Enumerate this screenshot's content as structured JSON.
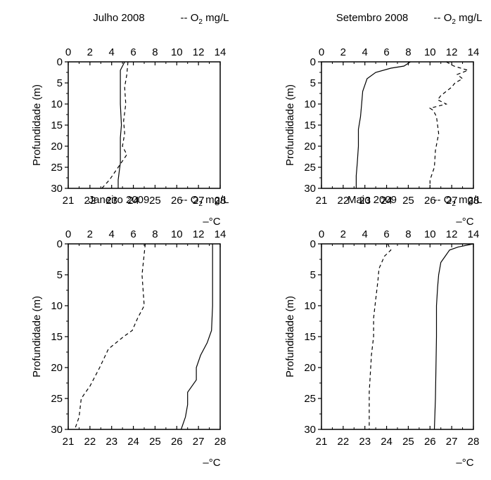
{
  "chart_data": [
    {
      "type": "line",
      "title": "Julho 2008",
      "o2_legend": {
        "dash": "--",
        "prefix": "O",
        "sub": "2",
        "suffix": " mg/L"
      },
      "temp_legend": {
        "dash": "–",
        "unit": "°C"
      },
      "ylabel": "Profundidade (m)",
      "ylim": [
        30,
        0
      ],
      "yticks": [
        "0",
        "5",
        "10",
        "15",
        "20",
        "25",
        "30"
      ],
      "top_axis": {
        "lim": [
          0,
          14
        ],
        "ticks": [
          "0",
          "2",
          "4",
          "6",
          "8",
          "10",
          "12",
          "14"
        ]
      },
      "bottom_axis": {
        "lim": [
          21,
          28
        ],
        "ticks": [
          "21",
          "22",
          "23",
          "24",
          "25",
          "26",
          "27",
          "28"
        ]
      },
      "series": [
        {
          "style": "solid",
          "axis": "bottom",
          "x": [
            23.6,
            23.4,
            23.4,
            23.4,
            23.45,
            23.4,
            23.4,
            23.4,
            23.35,
            23.3,
            23.3
          ],
          "depth": [
            0,
            2,
            5,
            10,
            15,
            18,
            20,
            24,
            26,
            28,
            30
          ]
        },
        {
          "style": "dashed",
          "axis": "top",
          "x": [
            5.5,
            5.4,
            5.2,
            5.3,
            5.1,
            5.2,
            5.0,
            5.4,
            4.6,
            3.8,
            3.1
          ],
          "depth": [
            0,
            3,
            6,
            10,
            14,
            17,
            20,
            22,
            25,
            28,
            30
          ]
        }
      ]
    },
    {
      "type": "line",
      "title": "Setembro 2008",
      "o2_legend": {
        "dash": "--",
        "prefix": "O",
        "sub": "2",
        "suffix": " mg/L"
      },
      "temp_legend": {
        "dash": "–",
        "unit": "°C"
      },
      "ylabel": "Profundidade (m)",
      "ylim": [
        30,
        0
      ],
      "yticks": [
        "0",
        "5",
        "10",
        "15",
        "20",
        "25",
        "30"
      ],
      "top_axis": {
        "lim": [
          0,
          14
        ],
        "ticks": [
          "0",
          "2",
          "4",
          "6",
          "8",
          "10",
          "12",
          "14"
        ]
      },
      "bottom_axis": {
        "lim": [
          21,
          28
        ],
        "ticks": [
          "21",
          "22",
          "23",
          "24",
          "25",
          "26",
          "27",
          "28"
        ]
      },
      "series": [
        {
          "style": "solid",
          "axis": "bottom",
          "x": [
            25.1,
            24.8,
            24.2,
            23.5,
            23.1,
            22.9,
            22.85,
            22.8,
            22.7,
            22.7,
            22.65,
            22.6,
            22.6
          ],
          "depth": [
            0,
            1,
            1.5,
            2.5,
            4,
            7,
            10,
            13,
            16,
            20,
            24,
            27,
            30
          ]
        },
        {
          "style": "dashed",
          "axis": "top",
          "x": [
            11.5,
            12.2,
            13.5,
            12.5,
            13.0,
            12.3,
            12.0,
            11.0,
            10.7,
            11.5,
            10.0,
            10.3,
            10.6,
            10.8,
            10.5,
            10.4,
            10.0,
            10.0
          ],
          "depth": [
            0,
            1,
            2,
            3,
            4,
            5,
            6,
            8,
            9,
            10,
            11,
            11.5,
            13,
            17,
            21,
            25,
            28,
            30
          ]
        }
      ]
    },
    {
      "type": "line",
      "title": "Janeiro 2009",
      "o2_legend": {
        "dash": "--",
        "prefix": "O",
        "sub": "2",
        "suffix": " mg/L"
      },
      "temp_legend": {
        "dash": "–",
        "unit": "°C"
      },
      "ylabel": "Profundidade (m)",
      "ylim": [
        30,
        0
      ],
      "yticks": [
        "0",
        "5",
        "10",
        "15",
        "20",
        "25",
        "30"
      ],
      "top_axis": {
        "lim": [
          0,
          14
        ],
        "ticks": [
          "0",
          "2",
          "4",
          "6",
          "8",
          "10",
          "12",
          "14"
        ]
      },
      "bottom_axis": {
        "lim": [
          21,
          28
        ],
        "ticks": [
          "21",
          "22",
          "23",
          "24",
          "25",
          "26",
          "27",
          "28"
        ]
      },
      "series": [
        {
          "style": "solid",
          "axis": "bottom",
          "x": [
            27.65,
            27.65,
            27.65,
            27.6,
            27.4,
            27.1,
            26.9,
            26.9,
            26.5,
            26.5,
            26.4,
            26.2
          ],
          "depth": [
            0,
            5,
            10,
            14,
            16,
            18,
            20,
            22,
            24,
            26,
            28,
            30
          ]
        },
        {
          "style": "dashed",
          "axis": "top",
          "x": [
            7.1,
            6.8,
            7.0,
            6.4,
            5.9,
            5.1,
            3.7,
            2.9,
            2.0,
            1.2,
            1.0,
            0.6
          ],
          "depth": [
            0,
            5,
            10,
            12,
            14,
            15,
            17,
            20,
            23,
            25,
            28,
            30
          ]
        }
      ]
    },
    {
      "type": "line",
      "title": "Maio 2009",
      "o2_legend": {
        "dash": "--",
        "prefix": "O",
        "sub": "2",
        "suffix": " mg/L"
      },
      "temp_legend": {
        "dash": "–",
        "unit": "°C"
      },
      "ylabel": "Profundidade (m)",
      "ylim": [
        30,
        0
      ],
      "yticks": [
        "0",
        "5",
        "10",
        "15",
        "20",
        "25",
        "30"
      ],
      "top_axis": {
        "lim": [
          0,
          14
        ],
        "ticks": [
          "0",
          "2",
          "4",
          "6",
          "8",
          "10",
          "12",
          "14"
        ]
      },
      "bottom_axis": {
        "lim": [
          21,
          28
        ],
        "ticks": [
          "21",
          "22",
          "23",
          "24",
          "25",
          "26",
          "27",
          "28"
        ]
      },
      "series": [
        {
          "style": "solid",
          "axis": "bottom",
          "x": [
            28.0,
            27.3,
            26.9,
            26.7,
            26.5,
            26.4,
            26.35,
            26.3,
            26.3,
            26.25,
            26.2
          ],
          "depth": [
            0,
            0.5,
            1,
            2,
            3,
            5,
            7,
            10,
            15,
            25,
            30
          ]
        },
        {
          "style": "dashed",
          "axis": "top",
          "x": [
            6.1,
            6.4,
            5.8,
            5.3,
            5.2,
            5.0,
            4.8,
            4.8,
            4.6,
            4.4,
            4.4
          ],
          "depth": [
            0,
            1,
            2,
            4,
            6,
            9,
            12,
            15,
            18,
            24,
            30
          ]
        }
      ]
    }
  ]
}
